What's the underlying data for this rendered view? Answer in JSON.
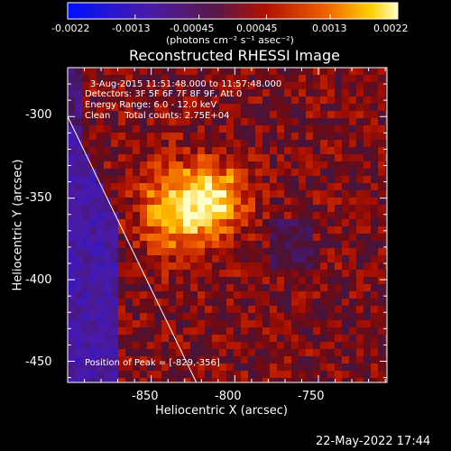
{
  "chart_data": {
    "type": "heatmap",
    "title": "Reconstructed RHESSI Image",
    "xlabel": "Heliocentric X (arcsec)",
    "ylabel": "Heliocentric Y (arcsec)",
    "xlim": [
      -900,
      -709
    ],
    "ylim": [
      -463,
      -270
    ],
    "xticks": [
      -850,
      -800,
      -750
    ],
    "yticks": [
      -300,
      -350,
      -400,
      -450
    ],
    "colorbar": {
      "ticks": [
        "-0.0022",
        "-0.0013",
        "-0.00045",
        "0.00045",
        "0.0013",
        "0.0022"
      ],
      "range": [
        -0.0022,
        0.0022
      ],
      "unit_text": "(photons cm⁻² s⁻¹ asec⁻²)"
    },
    "annotations": {
      "time": "3-Aug-2015 11:51:48.000 to 11:57:48.000",
      "detectors": "Detectors: 3F 5F 6F 7F 8F 9F, Att 0",
      "energy": "Energy Range: 6.0 - 12.0 keV",
      "clean": "Clean     Total counts: 2.75E+04",
      "peak": "Position of Peak = [-829,-356]"
    },
    "peak": {
      "x": -829,
      "y": -356
    },
    "limb_line": [
      [
        -900,
        -300
      ],
      [
        -823,
        -463
      ]
    ],
    "footer_date": "22-May-2022 17:44"
  },
  "colors": {
    "background": "#000000",
    "text": "#ffffff",
    "colormap": [
      "#0000ff",
      "#3a1a9a",
      "#5b2080",
      "#8b1020",
      "#c01000",
      "#f06000",
      "#ffc000",
      "#ffffa0"
    ]
  }
}
